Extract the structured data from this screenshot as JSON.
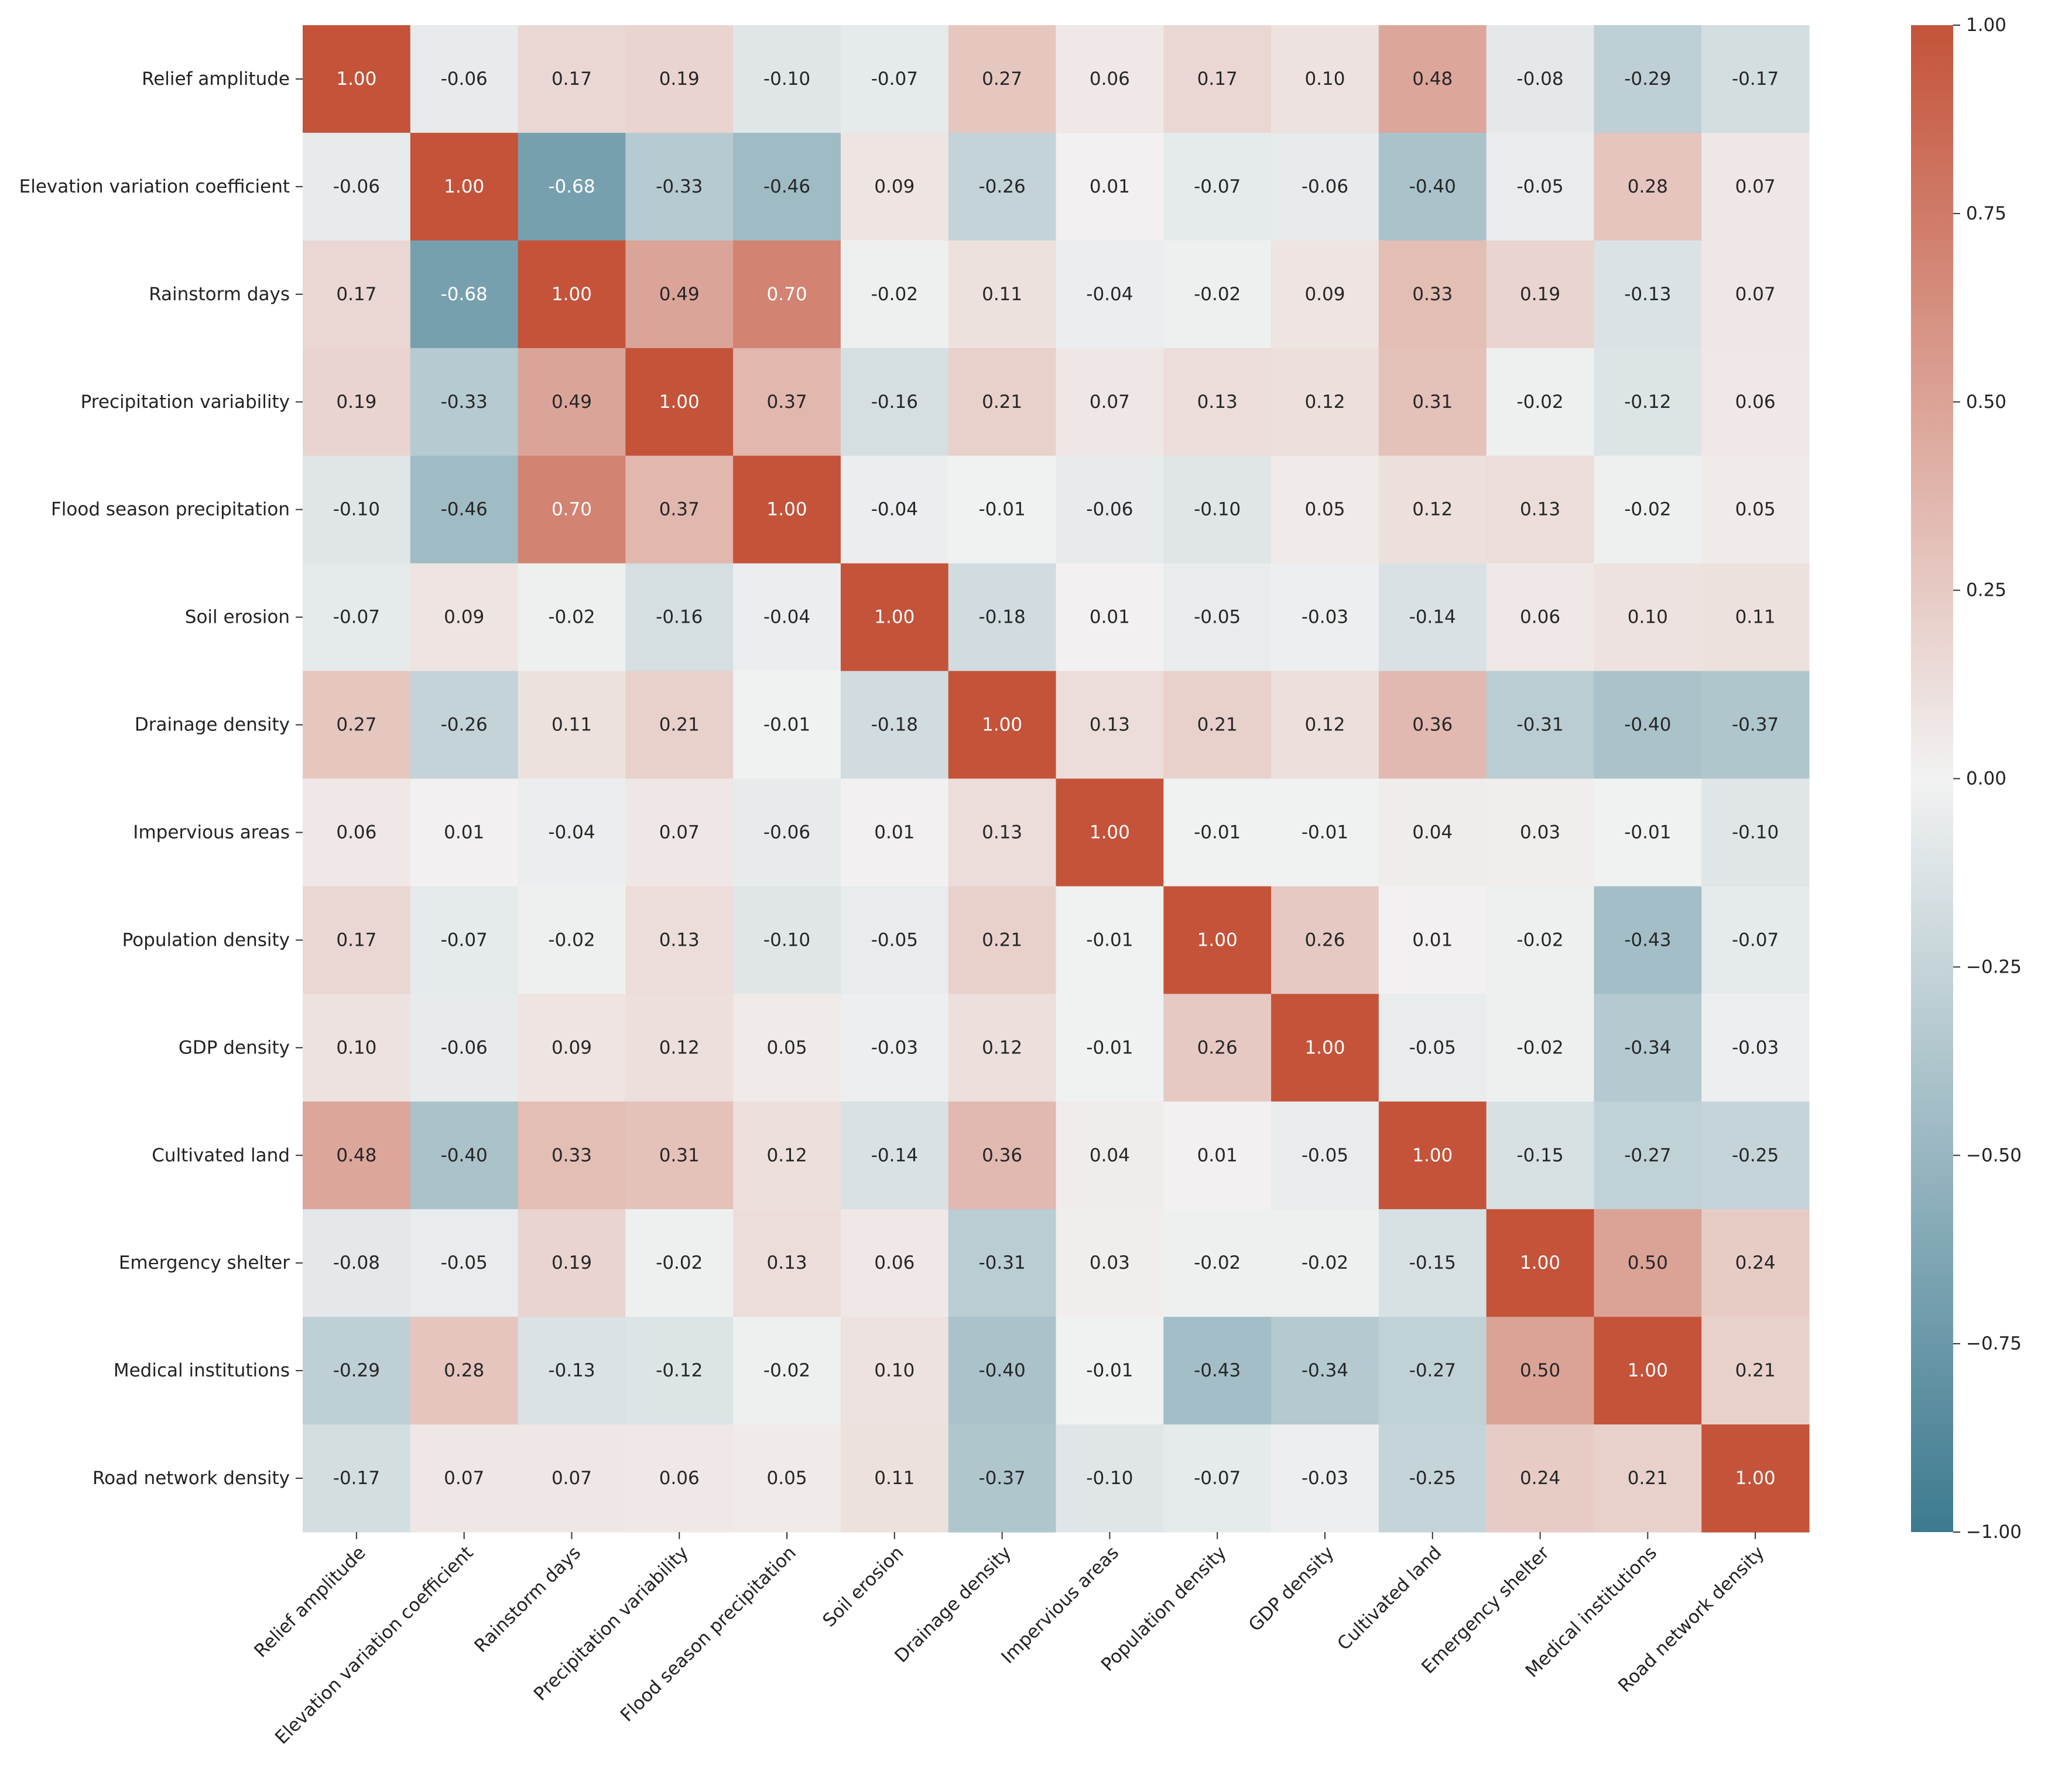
{
  "chart_data": {
    "type": "heatmap",
    "title": "",
    "xlabel": "",
    "ylabel": "",
    "labels": [
      "Relief amplitude",
      "Elevation variation coefficient",
      "Rainstorm days",
      "Precipitation variability",
      "Flood season precipitation",
      "Soil erosion",
      "Drainage density",
      "Impervious areas",
      "Population density",
      "GDP density",
      "Cultivated land",
      "Emergency shelter",
      "Medical institutions",
      "Road network density"
    ],
    "values": [
      [
        1.0,
        -0.06,
        0.17,
        0.19,
        -0.1,
        -0.07,
        0.27,
        0.06,
        0.17,
        0.1,
        0.48,
        -0.08,
        -0.29,
        -0.17
      ],
      [
        -0.06,
        1.0,
        -0.68,
        -0.33,
        -0.46,
        0.09,
        -0.26,
        0.01,
        -0.07,
        -0.06,
        -0.4,
        -0.05,
        0.28,
        0.07
      ],
      [
        0.17,
        -0.68,
        1.0,
        0.49,
        0.7,
        -0.02,
        0.11,
        -0.04,
        -0.02,
        0.09,
        0.33,
        0.19,
        -0.13,
        0.07
      ],
      [
        0.19,
        -0.33,
        0.49,
        1.0,
        0.37,
        -0.16,
        0.21,
        0.07,
        0.13,
        0.12,
        0.31,
        -0.02,
        -0.12,
        0.06
      ],
      [
        -0.1,
        -0.46,
        0.7,
        0.37,
        1.0,
        -0.04,
        -0.01,
        -0.06,
        -0.1,
        0.05,
        0.12,
        0.13,
        -0.02,
        0.05
      ],
      [
        -0.07,
        0.09,
        -0.02,
        -0.16,
        -0.04,
        1.0,
        -0.18,
        0.01,
        -0.05,
        -0.03,
        -0.14,
        0.06,
        0.1,
        0.11
      ],
      [
        0.27,
        -0.26,
        0.11,
        0.21,
        -0.01,
        -0.18,
        1.0,
        0.13,
        0.21,
        0.12,
        0.36,
        -0.31,
        -0.4,
        -0.37
      ],
      [
        0.06,
        0.01,
        -0.04,
        0.07,
        -0.06,
        0.01,
        0.13,
        1.0,
        -0.01,
        -0.01,
        0.04,
        0.03,
        -0.01,
        -0.1
      ],
      [
        0.17,
        -0.07,
        -0.02,
        0.13,
        -0.1,
        -0.05,
        0.21,
        -0.01,
        1.0,
        0.26,
        0.01,
        -0.02,
        -0.43,
        -0.07
      ],
      [
        0.1,
        -0.06,
        0.09,
        0.12,
        0.05,
        -0.03,
        0.12,
        -0.01,
        0.26,
        1.0,
        -0.05,
        -0.02,
        -0.34,
        -0.03
      ],
      [
        0.48,
        -0.4,
        0.33,
        0.31,
        0.12,
        -0.14,
        0.36,
        0.04,
        0.01,
        -0.05,
        1.0,
        -0.15,
        -0.27,
        -0.25
      ],
      [
        -0.08,
        -0.05,
        0.19,
        -0.02,
        0.13,
        0.06,
        -0.31,
        0.03,
        -0.02,
        -0.02,
        -0.15,
        1.0,
        0.5,
        0.24
      ],
      [
        -0.29,
        0.28,
        -0.13,
        -0.12,
        -0.02,
        0.1,
        -0.4,
        -0.01,
        -0.43,
        -0.34,
        -0.27,
        0.5,
        1.0,
        0.21
      ],
      [
        -0.17,
        0.07,
        0.07,
        0.06,
        0.05,
        0.11,
        -0.37,
        -0.1,
        -0.07,
        -0.03,
        -0.25,
        0.24,
        0.21,
        1.0
      ]
    ],
    "value_format": "2 decimals",
    "colorbar": {
      "range": [
        -1.0,
        1.0
      ],
      "ticks": [
        1.0,
        0.75,
        0.5,
        0.25,
        0.0,
        -0.25,
        -0.5,
        -0.75,
        -1.0
      ],
      "tick_labels": [
        "1.00",
        "0.75",
        "0.50",
        "0.25",
        "0.00",
        "−0.25",
        "−0.50",
        "−0.75",
        "−1.00"
      ]
    },
    "colors": {
      "negative": "#3d7a8f",
      "zero": "#f2f2f2",
      "positive": "#c4533a",
      "annotation_dark": "#262626",
      "annotation_light": "#ffffff"
    }
  }
}
